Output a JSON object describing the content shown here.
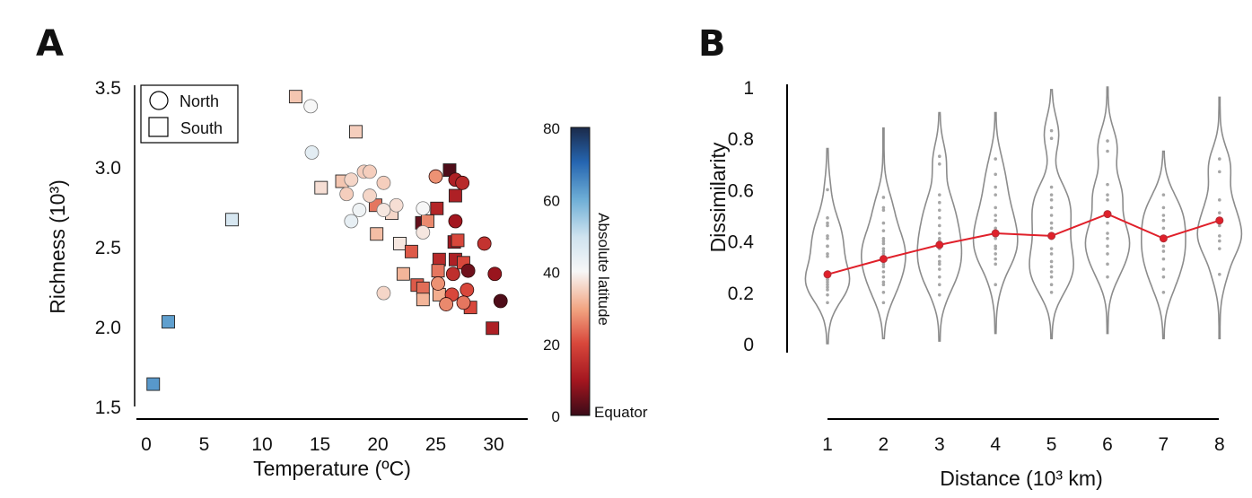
{
  "colors": {
    "mean_line": "#e0202a",
    "violin": "#8c8c8c",
    "dots": "#a6a6a6",
    "axis": "#000000"
  },
  "chart_data": [
    {
      "panel_label": "A",
      "type": "scatter",
      "xlabel": "Temperature (ºC)",
      "ylabel": "Richness (10³)",
      "xlim": [
        -1,
        33
      ],
      "ylim": [
        1.5,
        3.5
      ],
      "xticks": [
        0,
        5,
        10,
        15,
        20,
        25,
        30
      ],
      "yticks": [
        "1.5",
        "2.0",
        "2.5",
        "3.0",
        "3.5"
      ],
      "grid": false,
      "legend": {
        "placement": "top-left",
        "entries": [
          {
            "label": "North",
            "marker": "circle"
          },
          {
            "label": "South",
            "marker": "square"
          }
        ]
      },
      "colorbar": {
        "label": "Absolute latitude",
        "range": [
          0,
          80
        ],
        "ticks": [
          "0",
          "20",
          "40",
          "60",
          "80"
        ],
        "end_label": "Equator",
        "colormap": "red-white-blue"
      },
      "series": [
        {
          "name": "South",
          "marker": "square",
          "points": [
            {
              "temp": 12.9,
              "richness": 3.44,
              "lat": 34
            },
            {
              "temp": 18.1,
              "richness": 3.22,
              "lat": 35
            },
            {
              "temp": 7.4,
              "richness": 2.67,
              "lat": 48
            },
            {
              "temp": 1.9,
              "richness": 2.03,
              "lat": 62
            },
            {
              "temp": 0.6,
              "richness": 1.64,
              "lat": 63
            },
            {
              "temp": 15.1,
              "richness": 2.87,
              "lat": 37
            },
            {
              "temp": 16.9,
              "richness": 2.91,
              "lat": 34
            },
            {
              "temp": 19.8,
              "richness": 2.76,
              "lat": 25
            },
            {
              "temp": 21.2,
              "richness": 2.71,
              "lat": 36
            },
            {
              "temp": 19.9,
              "richness": 2.58,
              "lat": 33
            },
            {
              "temp": 21.9,
              "richness": 2.52,
              "lat": 38
            },
            {
              "temp": 22.9,
              "richness": 2.47,
              "lat": 22
            },
            {
              "temp": 26.2,
              "richness": 2.98,
              "lat": 2
            },
            {
              "temp": 26.7,
              "richness": 2.82,
              "lat": 12
            },
            {
              "temp": 25.1,
              "richness": 2.74,
              "lat": 13
            },
            {
              "temp": 23.8,
              "richness": 2.65,
              "lat": 4
            },
            {
              "temp": 24.3,
              "richness": 2.66,
              "lat": 27
            },
            {
              "temp": 26.6,
              "richness": 2.53,
              "lat": 10
            },
            {
              "temp": 26.9,
              "richness": 2.54,
              "lat": 20
            },
            {
              "temp": 25.3,
              "richness": 2.42,
              "lat": 14
            },
            {
              "temp": 26.7,
              "richness": 2.42,
              "lat": 12
            },
            {
              "temp": 27.4,
              "richness": 2.4,
              "lat": 20
            },
            {
              "temp": 25.2,
              "richness": 2.35,
              "lat": 25
            },
            {
              "temp": 22.2,
              "richness": 2.33,
              "lat": 32
            },
            {
              "temp": 23.4,
              "richness": 2.26,
              "lat": 22
            },
            {
              "temp": 23.9,
              "richness": 2.24,
              "lat": 24
            },
            {
              "temp": 23.9,
              "richness": 2.17,
              "lat": 32
            },
            {
              "temp": 25.3,
              "richness": 2.2,
              "lat": 31
            },
            {
              "temp": 28.0,
              "richness": 2.12,
              "lat": 20
            },
            {
              "temp": 29.9,
              "richness": 1.99,
              "lat": 12
            }
          ]
        },
        {
          "name": "North",
          "marker": "circle",
          "points": [
            {
              "temp": 14.2,
              "richness": 3.38,
              "lat": 40
            },
            {
              "temp": 14.3,
              "richness": 3.09,
              "lat": 45
            },
            {
              "temp": 18.8,
              "richness": 2.97,
              "lat": 35
            },
            {
              "temp": 19.3,
              "richness": 2.97,
              "lat": 35
            },
            {
              "temp": 17.7,
              "richness": 2.92,
              "lat": 36
            },
            {
              "temp": 20.5,
              "richness": 2.9,
              "lat": 35
            },
            {
              "temp": 17.3,
              "richness": 2.83,
              "lat": 35
            },
            {
              "temp": 19.3,
              "richness": 2.82,
              "lat": 36
            },
            {
              "temp": 21.6,
              "richness": 2.76,
              "lat": 37
            },
            {
              "temp": 20.5,
              "richness": 2.73,
              "lat": 38
            },
            {
              "temp": 18.4,
              "richness": 2.73,
              "lat": 42
            },
            {
              "temp": 17.7,
              "richness": 2.66,
              "lat": 44
            },
            {
              "temp": 20.5,
              "richness": 2.21,
              "lat": 36
            },
            {
              "temp": 25.0,
              "richness": 2.94,
              "lat": 28
            },
            {
              "temp": 26.7,
              "richness": 2.92,
              "lat": 12
            },
            {
              "temp": 27.3,
              "richness": 2.9,
              "lat": 14
            },
            {
              "temp": 23.9,
              "richness": 2.74,
              "lat": 40
            },
            {
              "temp": 23.9,
              "richness": 2.59,
              "lat": 38
            },
            {
              "temp": 26.7,
              "richness": 2.66,
              "lat": 10
            },
            {
              "temp": 29.2,
              "richness": 2.52,
              "lat": 16
            },
            {
              "temp": 27.8,
              "richness": 2.35,
              "lat": 5
            },
            {
              "temp": 26.5,
              "richness": 2.33,
              "lat": 15
            },
            {
              "temp": 30.1,
              "richness": 2.33,
              "lat": 9
            },
            {
              "temp": 25.2,
              "richness": 2.27,
              "lat": 28
            },
            {
              "temp": 26.4,
              "richness": 2.2,
              "lat": 20
            },
            {
              "temp": 27.7,
              "richness": 2.23,
              "lat": 20
            },
            {
              "temp": 25.9,
              "richness": 2.14,
              "lat": 27
            },
            {
              "temp": 27.4,
              "richness": 2.15,
              "lat": 25
            },
            {
              "temp": 30.6,
              "richness": 2.16,
              "lat": 2
            }
          ]
        }
      ]
    },
    {
      "panel_label": "B",
      "type": "violin",
      "xlabel": "Distance (10³ km)",
      "ylabel": "Dissimilarity",
      "categories": [
        "1",
        "2",
        "3",
        "4",
        "5",
        "6",
        "7",
        "8"
      ],
      "ylim": [
        0,
        1
      ],
      "yticks": [
        "0",
        "0.2",
        "0.4",
        "0.6",
        "0.8",
        "1"
      ],
      "grid": false,
      "mean_line": [
        0.27,
        0.33,
        0.385,
        0.43,
        0.42,
        0.505,
        0.41,
        0.48
      ],
      "violins": [
        {
          "range": [
            0.0,
            0.76
          ],
          "points": [
            0.6,
            0.49,
            0.47,
            0.46,
            0.42,
            0.41,
            0.38,
            0.38,
            0.35,
            0.34,
            0.28,
            0.27,
            0.26,
            0.25,
            0.25,
            0.24,
            0.23,
            0.22,
            0.21,
            0.19,
            0.16
          ]
        },
        {
          "range": [
            0.02,
            0.84
          ],
          "points": [
            0.57,
            0.53,
            0.52,
            0.47,
            0.44,
            0.41,
            0.4,
            0.39,
            0.37,
            0.36,
            0.35,
            0.33,
            0.31,
            0.3,
            0.28,
            0.26,
            0.24,
            0.23,
            0.2,
            0.16
          ]
        },
        {
          "range": [
            0.01,
            0.9
          ],
          "points": [
            0.73,
            0.7,
            0.58,
            0.55,
            0.52,
            0.49,
            0.46,
            0.43,
            0.41,
            0.4,
            0.37,
            0.34,
            0.32,
            0.31,
            0.29,
            0.26,
            0.23,
            0.19
          ]
        },
        {
          "range": [
            0.04,
            0.9
          ],
          "points": [
            0.72,
            0.66,
            0.61,
            0.58,
            0.53,
            0.5,
            0.48,
            0.45,
            0.44,
            0.41,
            0.38,
            0.37,
            0.35,
            0.33,
            0.31,
            0.23
          ]
        },
        {
          "range": [
            0.02,
            0.99
          ],
          "points": [
            0.83,
            0.8,
            0.61,
            0.58,
            0.56,
            0.53,
            0.5,
            0.47,
            0.45,
            0.41,
            0.37,
            0.35,
            0.32,
            0.3,
            0.28,
            0.26,
            0.23,
            0.2
          ]
        },
        {
          "range": [
            0.04,
            1.0
          ],
          "points": [
            0.79,
            0.75,
            0.62,
            0.58,
            0.56,
            0.47,
            0.43,
            0.41,
            0.38,
            0.35,
            0.31,
            0.26
          ]
        },
        {
          "range": [
            0.02,
            0.75
          ],
          "points": [
            0.58,
            0.53,
            0.5,
            0.48,
            0.45,
            0.41,
            0.38,
            0.36,
            0.33,
            0.29,
            0.26,
            0.2
          ]
        },
        {
          "range": [
            0.02,
            0.96
          ],
          "points": [
            0.72,
            0.67,
            0.56,
            0.51,
            0.46,
            0.42,
            0.4,
            0.37,
            0.27
          ]
        }
      ]
    }
  ]
}
